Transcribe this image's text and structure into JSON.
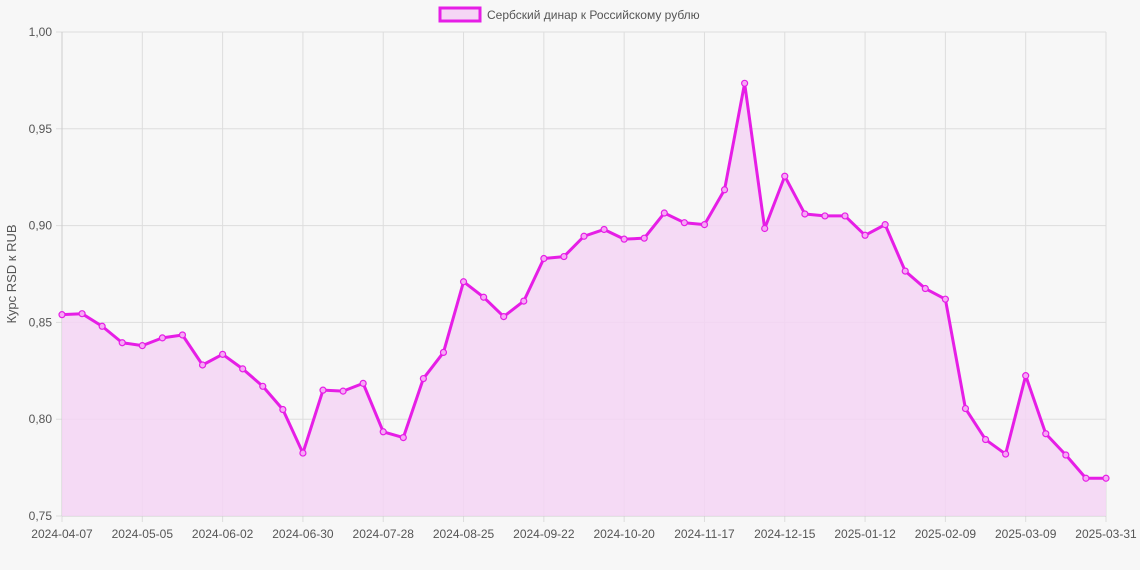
{
  "chart_data": {
    "type": "area",
    "legend": {
      "label": "Сербский динар к Российскому рублю",
      "placement": "top-center"
    },
    "ylabel": "Курс RSD к RUB",
    "ylim": [
      0.75,
      1.0
    ],
    "y_ticks": [
      "1,00",
      "0,95",
      "0,90",
      "0,85",
      "0,80",
      "0,75"
    ],
    "y_tick_values": [
      1.0,
      0.95,
      0.9,
      0.85,
      0.8,
      0.75
    ],
    "x_ticks": [
      "2024-04-07",
      "2024-05-05",
      "2024-06-02",
      "2024-06-30",
      "2024-07-28",
      "2024-08-25",
      "2024-09-22",
      "2024-10-20",
      "2024-11-17",
      "2024-12-15",
      "2025-01-12",
      "2025-02-09",
      "2025-03-09",
      "2025-03-31"
    ],
    "x_tick_indices": [
      0,
      4,
      8,
      12,
      16,
      20,
      24,
      28,
      32,
      36,
      40,
      44,
      48,
      52
    ],
    "grid": true,
    "colors": {
      "line": "#e61ee6",
      "fill": "#f5d5f5",
      "point_fill": "#f6a9f6",
      "grid": "#dddddd",
      "background": "#f7f7f7"
    },
    "series": [
      {
        "name": "Сербский динар к Российскому рублю",
        "values": [
          0.854,
          0.8545,
          0.848,
          0.8395,
          0.838,
          0.842,
          0.8435,
          0.828,
          0.8335,
          0.826,
          0.817,
          0.805,
          0.7825,
          0.815,
          0.8145,
          0.8185,
          0.7935,
          0.7905,
          0.821,
          0.8345,
          0.871,
          0.863,
          0.853,
          0.861,
          0.883,
          0.884,
          0.8945,
          0.898,
          0.893,
          0.8935,
          0.9065,
          0.9015,
          0.9005,
          0.9185,
          0.9735,
          0.8985,
          0.9255,
          0.906,
          0.905,
          0.905,
          0.895,
          0.9005,
          0.8765,
          0.8675,
          0.862,
          0.8055,
          0.7895,
          0.782,
          0.8225,
          0.7925,
          0.7815,
          0.7695,
          0.7695
        ]
      }
    ]
  }
}
